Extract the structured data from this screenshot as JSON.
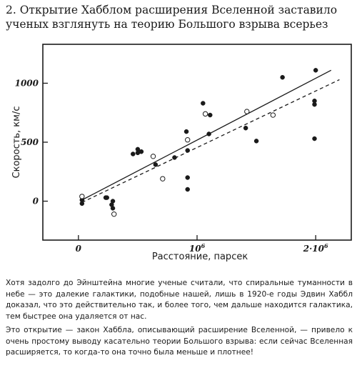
{
  "article": {
    "heading": "2. Открытие Хабблом расширения Вселенной заставило ученых взглянуть на теорию Большого взрыва всерьез",
    "paragraph1": "Хотя задолго до Эйнштейна многие ученые считали, что спиральные туманности в небе — это далекие галактики, подобные нашей, лишь в 1920-е годы Эдвин Хаббл доказал, что это действительно так, и более того, чем дальше находится галактика, тем быстрее она удаляется от нас.",
    "paragraph2": "Это открытие — закон Хаббла, описывающий расширение Вселенной, — привело к очень простому выводу касательно теории Большого взрыва: если сейчас Вселенная расширяется, то когда-то она точно была меньше и плотнее!"
  },
  "chart_data": {
    "type": "scatter",
    "xlabel": "Расстояние, парсек",
    "ylabel": "Скорость, км/с",
    "x_tick_labels": [
      {
        "value": 0,
        "base": "0",
        "exp": ""
      },
      {
        "value": 1000000,
        "base": "10",
        "exp": "6"
      },
      {
        "value": 2000000,
        "base": "2·10",
        "exp": "6"
      }
    ],
    "y_tick_labels": [
      {
        "value": 0,
        "label": "0"
      },
      {
        "value": 500,
        "label": "500"
      },
      {
        "value": 1000,
        "label": "1000"
      }
    ],
    "xlim": [
      -300000,
      2300000
    ],
    "ylim": [
      -330,
      1330
    ],
    "grid": false,
    "colors": {
      "axes": "#1a1a1a",
      "points": "#1a1a1a",
      "hollow_fill": "#ffffff"
    },
    "series": [
      {
        "marker": "filled-circle",
        "points": [
          [
            30000,
            10
          ],
          [
            30000,
            -20
          ],
          [
            230000,
            30
          ],
          [
            240000,
            30
          ],
          [
            280000,
            -30
          ],
          [
            290000,
            -60
          ],
          [
            290000,
            0
          ],
          [
            460000,
            400
          ],
          [
            500000,
            440
          ],
          [
            500000,
            410
          ],
          [
            530000,
            420
          ],
          [
            650000,
            310
          ],
          [
            810000,
            370
          ],
          [
            910000,
            590
          ],
          [
            920000,
            520
          ],
          [
            920000,
            430
          ],
          [
            920000,
            200
          ],
          [
            920000,
            100
          ],
          [
            1050000,
            830
          ],
          [
            1110000,
            730
          ],
          [
            1100000,
            570
          ],
          [
            1410000,
            620
          ],
          [
            1500000,
            510
          ],
          [
            1720000,
            1050
          ],
          [
            1990000,
            820
          ],
          [
            2000000,
            1110
          ],
          [
            1990000,
            850
          ],
          [
            1990000,
            530
          ]
        ]
      },
      {
        "marker": "hollow-circle",
        "points": [
          [
            30000,
            40
          ],
          [
            300000,
            -110
          ],
          [
            630000,
            380
          ],
          [
            710000,
            190
          ],
          [
            920000,
            520
          ],
          [
            1070000,
            740
          ],
          [
            1420000,
            760
          ],
          [
            1640000,
            730
          ]
        ]
      }
    ],
    "lines": [
      {
        "style": "solid",
        "x": [
          30000,
          2130000
        ],
        "y": [
          10,
          1110
        ]
      },
      {
        "style": "dashed",
        "x": [
          30000,
          2200000
        ],
        "y": [
          -10,
          1030
        ]
      }
    ]
  }
}
